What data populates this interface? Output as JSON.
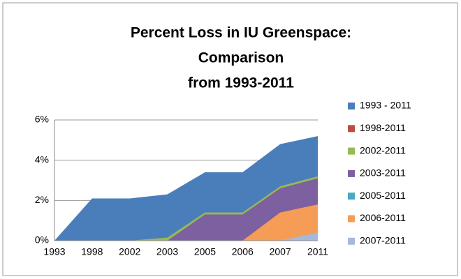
{
  "chart_data": {
    "type": "area",
    "title": [
      "Percent Loss in IU Greenspace:",
      "Comparison",
      "from 1993-2011"
    ],
    "categories": [
      "1993",
      "1998",
      "2002",
      "2003",
      "2005",
      "2006",
      "2007",
      "2011"
    ],
    "series": [
      {
        "name": "1993 - 2011",
        "color": "#4a7ebb",
        "values": [
          0,
          2.1,
          2.1,
          2.3,
          3.4,
          3.4,
          4.8,
          5.2
        ]
      },
      {
        "name": "1998-2011",
        "color": "#be4b48",
        "values": [
          null,
          0,
          0,
          0.1,
          1.35,
          1.35,
          2.65,
          3.15
        ]
      },
      {
        "name": "2002-2011",
        "color": "#98b954",
        "values": [
          null,
          null,
          0,
          0.15,
          1.4,
          1.4,
          2.7,
          3.2
        ]
      },
      {
        "name": "2003-2011",
        "color": "#7d60a0",
        "values": [
          null,
          null,
          null,
          0,
          1.3,
          1.3,
          2.6,
          3.1
        ]
      },
      {
        "name": "2005-2011",
        "color": "#46aac5",
        "values": [
          null,
          null,
          null,
          null,
          0,
          0,
          1.3,
          1.7
        ]
      },
      {
        "name": "2006-2011",
        "color": "#f59d56",
        "values": [
          null,
          null,
          null,
          null,
          null,
          0,
          1.4,
          1.8
        ]
      },
      {
        "name": "2007-2011",
        "color": "#a5b9db",
        "values": [
          null,
          null,
          null,
          null,
          null,
          null,
          0,
          0.4
        ]
      }
    ],
    "ylim": [
      0,
      6
    ],
    "yticks": [
      {
        "value": 0,
        "label": "0%"
      },
      {
        "value": 2,
        "label": "2%"
      },
      {
        "value": 4,
        "label": "4%"
      },
      {
        "value": 6,
        "label": "6%"
      }
    ],
    "grid": true,
    "legend": "right"
  }
}
